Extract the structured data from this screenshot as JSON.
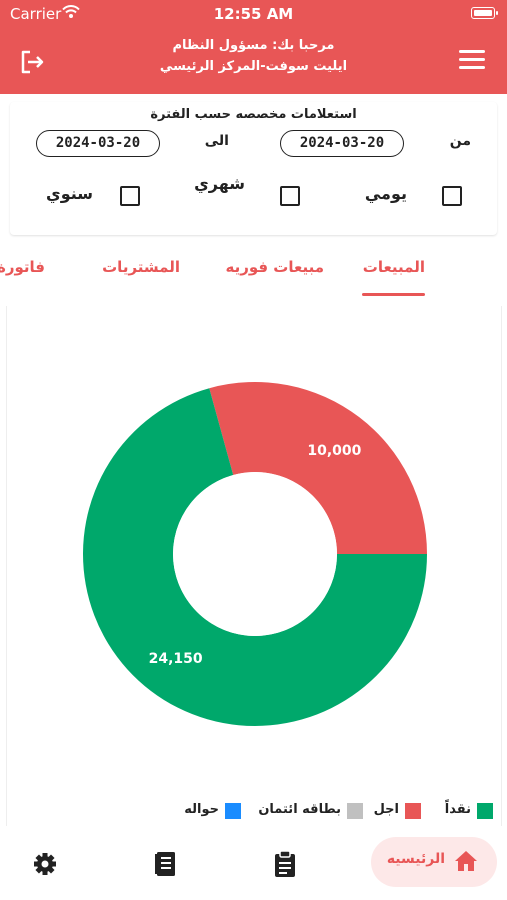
{
  "status_bar": {
    "carrier": "Carrier",
    "time": "12:55 AM"
  },
  "header": {
    "welcome": "مرحبا بك: مسؤول النظام",
    "branch": "ايليت سوفت-المركز الرئيسي",
    "logout_icon": "logout-icon",
    "menu_icon": "hamburger-menu-icon"
  },
  "filter": {
    "heading": "استعلامات مخصصه حسب الفترة",
    "from_label": "من",
    "to_label": "الى",
    "from_date": "2024-03-20",
    "to_date": "2024-03-20",
    "periods": [
      {
        "label": "يومي",
        "checked": false
      },
      {
        "label": "شهري",
        "checked": false
      },
      {
        "label": "سنوي",
        "checked": false
      }
    ]
  },
  "tabs": [
    {
      "label": "المبيعات",
      "active": true
    },
    {
      "label": "مبيعات فوريه",
      "active": false
    },
    {
      "label": "المشتريات",
      "active": false
    },
    {
      "label": "فاتورة خ",
      "active": false
    }
  ],
  "chart_data": {
    "type": "pie",
    "subtype": "donut",
    "categories": [
      "نقداً",
      "اجل",
      "بطاقه ائتمان",
      "حواله"
    ],
    "values": [
      24150,
      10000,
      0,
      0
    ],
    "data_labels": [
      "24,150",
      "10,000",
      "",
      ""
    ],
    "colors": [
      "#00a86b",
      "#e85656",
      "#c0c0c0",
      "#1a8cff"
    ],
    "legend_position": "bottom"
  },
  "bottom_nav": {
    "home_label": "الرئيسيه",
    "items": [
      "home-icon",
      "clipboard-icon",
      "receipt-book-icon",
      "gear-icon"
    ]
  },
  "colors": {
    "primary": "#e85656",
    "home_pill": "#fde8e8"
  }
}
